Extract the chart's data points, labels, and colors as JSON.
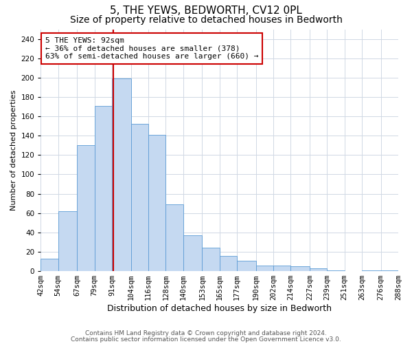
{
  "title": "5, THE YEWS, BEDWORTH, CV12 0PL",
  "subtitle": "Size of property relative to detached houses in Bedworth",
  "xlabel": "Distribution of detached houses by size in Bedworth",
  "ylabel": "Number of detached properties",
  "bar_color": "#c5d9f1",
  "bar_edge_color": "#5b9bd5",
  "grid_color": "#d0d8e4",
  "background_color": "#ffffff",
  "bin_edges": [
    42,
    54,
    67,
    79,
    91,
    104,
    116,
    128,
    140,
    153,
    165,
    177,
    190,
    202,
    214,
    227,
    239,
    251,
    263,
    276,
    288
  ],
  "values": [
    13,
    62,
    130,
    171,
    199,
    152,
    141,
    69,
    37,
    24,
    16,
    11,
    6,
    6,
    5,
    3,
    1,
    0,
    1,
    1
  ],
  "property_size": 92,
  "annotation_text": "5 THE YEWS: 92sqm\n← 36% of detached houses are smaller (378)\n63% of semi-detached houses are larger (660) →",
  "annotation_box_color": "#ffffff",
  "annotation_box_edge_color": "#cc0000",
  "vline_color": "#cc0000",
  "ylim": [
    0,
    250
  ],
  "yticks": [
    0,
    20,
    40,
    60,
    80,
    100,
    120,
    140,
    160,
    180,
    200,
    220,
    240
  ],
  "footer_line1": "Contains HM Land Registry data © Crown copyright and database right 2024.",
  "footer_line2": "Contains public sector information licensed under the Open Government Licence v3.0.",
  "title_fontsize": 11,
  "subtitle_fontsize": 10,
  "xlabel_fontsize": 9,
  "ylabel_fontsize": 8,
  "tick_fontsize": 7.5,
  "annotation_fontsize": 8,
  "footer_fontsize": 6.5
}
